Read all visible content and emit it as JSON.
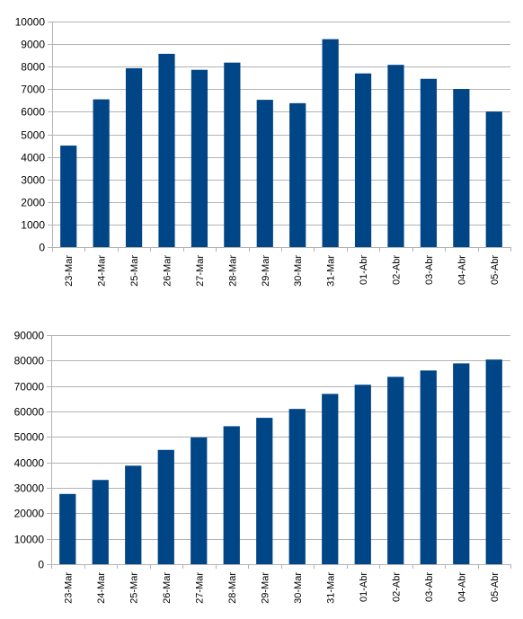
{
  "chart_data": [
    {
      "type": "bar",
      "title": "",
      "xlabel": "",
      "ylabel": "",
      "ylim": [
        0,
        10000
      ],
      "ystep": 1000,
      "grid": true,
      "legend": "none",
      "bar_color": "#004586",
      "categories": [
        "23-Mar",
        "24-Mar",
        "25-Mar",
        "26-Mar",
        "27-Mar",
        "28-Mar",
        "29-Mar",
        "30-Mar",
        "31-Mar",
        "01-Abr",
        "02-Abr",
        "03-Abr",
        "04-Abr",
        "05-Abr"
      ],
      "values": [
        4500,
        6550,
        7930,
        8570,
        7860,
        8180,
        6530,
        6380,
        9220,
        7700,
        8080,
        7460,
        7010,
        6010
      ]
    },
    {
      "type": "bar",
      "title": "",
      "xlabel": "",
      "ylabel": "",
      "ylim": [
        0,
        90000
      ],
      "ystep": 10000,
      "grid": true,
      "legend": "none",
      "bar_color": "#004586",
      "categories": [
        "23-Mar",
        "24-Mar",
        "25-Mar",
        "26-Mar",
        "27-Mar",
        "28-Mar",
        "29-Mar",
        "30-Mar",
        "31-Mar",
        "01-Abr",
        "02-Abr",
        "03-Abr",
        "04-Abr",
        "05-Abr"
      ],
      "values": [
        27600,
        33100,
        38700,
        44900,
        49800,
        54200,
        57500,
        61000,
        66900,
        70500,
        73600,
        76100,
        78900,
        80400
      ]
    }
  ]
}
